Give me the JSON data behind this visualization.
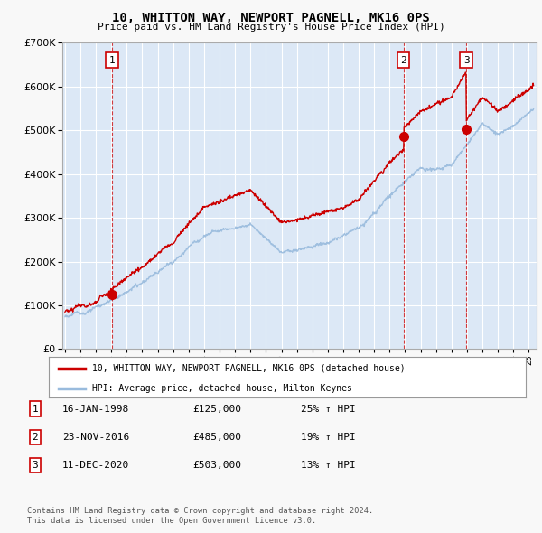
{
  "title": "10, WHITTON WAY, NEWPORT PAGNELL, MK16 0PS",
  "subtitle": "Price paid vs. HM Land Registry's House Price Index (HPI)",
  "legend_line1": "10, WHITTON WAY, NEWPORT PAGNELL, MK16 0PS (detached house)",
  "legend_line2": "HPI: Average price, detached house, Milton Keynes",
  "footer1": "Contains HM Land Registry data © Crown copyright and database right 2024.",
  "footer2": "This data is licensed under the Open Government Licence v3.0.",
  "xlim_start": 1994.83,
  "xlim_end": 2025.5,
  "ylim_bottom": 0,
  "ylim_top": 700000,
  "fig_bg": "#f8f8f8",
  "plot_bg": "#dce8f6",
  "red_color": "#cc0000",
  "blue_color": "#99bbdd",
  "grid_color": "#ffffff",
  "sale_year1": 1998.04,
  "sale_year2": 2016.9,
  "sale_year3": 2020.95,
  "sale_price1": 125000,
  "sale_price2": 485000,
  "sale_price3": 503000,
  "table_rows": [
    [
      "1",
      "16-JAN-1998",
      "£125,000",
      "25% ↑ HPI"
    ],
    [
      "2",
      "23-NOV-2016",
      "£485,000",
      "19% ↑ HPI"
    ],
    [
      "3",
      "11-DEC-2020",
      "£503,000",
      "13% ↑ HPI"
    ]
  ]
}
